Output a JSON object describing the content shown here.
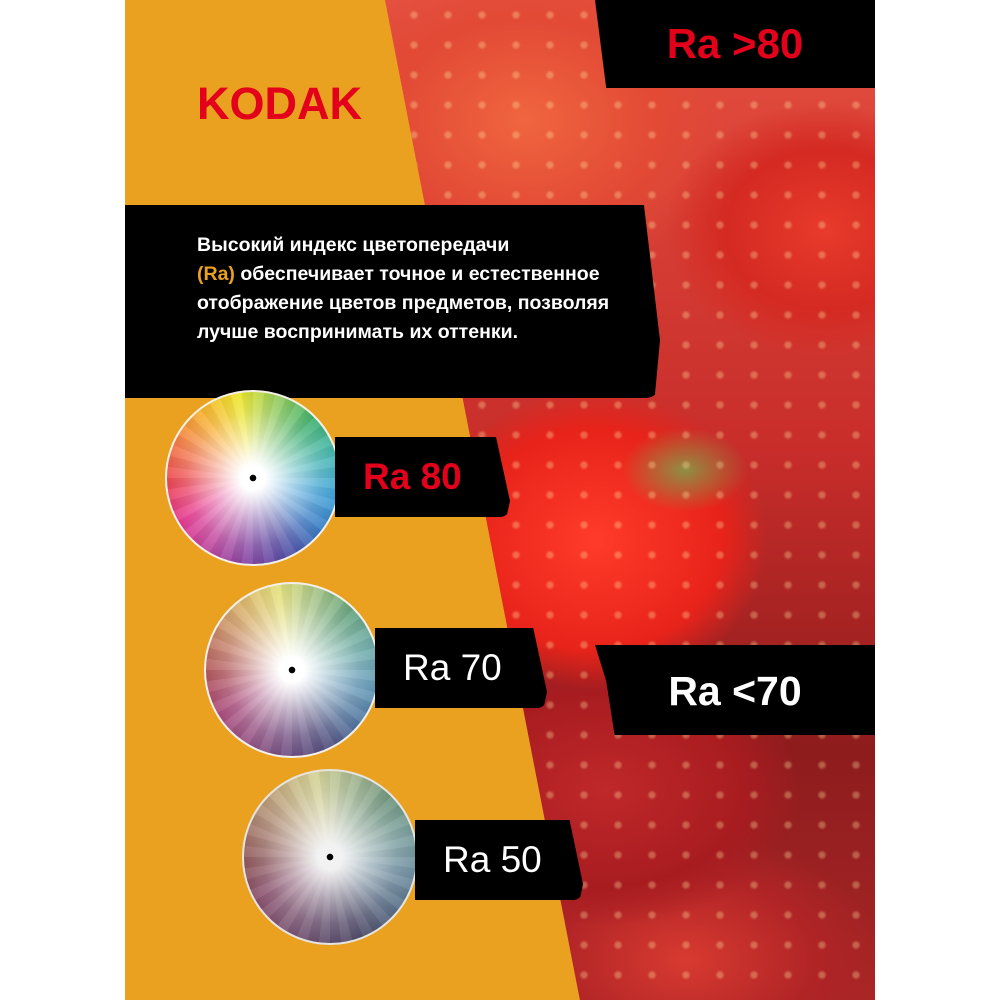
{
  "brand": "KODAK",
  "colors": {
    "accent_orange": "#E9A11F",
    "brand_red": "#E3001B",
    "box_black": "#000000"
  },
  "badge_top": "Ra >80",
  "badge_bottom": "Ra <70",
  "description": {
    "before": "Высокий индекс цветопередачи",
    "highlight": "(Ra)",
    "after": "обеспечивает точное и естественное отображение цветов предметов, позволяя лучше воспринимать их оттенки."
  },
  "wheels": [
    {
      "label": "Ra 80",
      "icon": "color-wheel-icon",
      "saturation": 1.0
    },
    {
      "label": "Ra 70",
      "icon": "color-wheel-icon",
      "saturation": 0.55
    },
    {
      "label": "Ra 50",
      "icon": "color-wheel-icon",
      "saturation": 0.35
    }
  ]
}
